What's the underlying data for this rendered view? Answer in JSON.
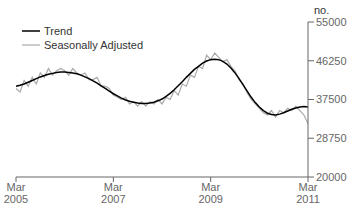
{
  "chart_data": {
    "type": "line",
    "title": "",
    "ylabel": "no.",
    "categories": [
      "Mar\n2005",
      null,
      null,
      null,
      null,
      null,
      null,
      null,
      null,
      null,
      null,
      null,
      null,
      null,
      null,
      null,
      null,
      null,
      null,
      null,
      null,
      null,
      null,
      null,
      "Mar\n2007",
      null,
      null,
      null,
      null,
      null,
      null,
      null,
      null,
      null,
      null,
      null,
      null,
      null,
      null,
      null,
      null,
      null,
      null,
      null,
      null,
      null,
      null,
      null,
      "Mar\n2009",
      null,
      null,
      null,
      null,
      null,
      null,
      null,
      null,
      null,
      null,
      null,
      null,
      null,
      null,
      null,
      null,
      null,
      null,
      null,
      null,
      null,
      null,
      null,
      "Mar\n2011"
    ],
    "series": [
      {
        "name": "Trend",
        "color": "#000000",
        "values": [
          40500,
          40700,
          41000,
          41400,
          41800,
          42200,
          42600,
          42900,
          43200,
          43400,
          43600,
          43700,
          43700,
          43600,
          43500,
          43300,
          43000,
          42600,
          42200,
          41700,
          41200,
          40600,
          40000,
          39400,
          38800,
          38300,
          37800,
          37400,
          37100,
          36900,
          36700,
          36600,
          36600,
          36700,
          36900,
          37200,
          37600,
          38200,
          38900,
          39700,
          40600,
          41500,
          42500,
          43400,
          44300,
          45000,
          45700,
          46200,
          46500,
          46600,
          46500,
          46100,
          45500,
          44600,
          43500,
          42200,
          40800,
          39400,
          38000,
          36800,
          35800,
          35000,
          34400,
          34100,
          34000,
          34200,
          34500,
          34900,
          35300,
          35600,
          35800,
          35900,
          35800
        ]
      },
      {
        "name": "Seasonally Adjusted",
        "color": "#aaaaaa",
        "values": [
          40000,
          39200,
          41800,
          40500,
          42500,
          41000,
          43500,
          42500,
          44500,
          43000,
          44000,
          44500,
          44000,
          43000,
          44500,
          43500,
          43000,
          43500,
          42000,
          42000,
          42500,
          40500,
          40500,
          40000,
          38500,
          38000,
          37500,
          38000,
          36500,
          37000,
          36000,
          37000,
          36000,
          37000,
          36500,
          37500,
          36500,
          38000,
          37500,
          39500,
          38500,
          41000,
          40500,
          43000,
          42500,
          45000,
          44500,
          47500,
          46500,
          48000,
          47000,
          46000,
          46500,
          45000,
          44000,
          42000,
          41000,
          39000,
          37500,
          36500,
          35500,
          34500,
          34000,
          35000,
          33500,
          35000,
          34500,
          35500,
          35000,
          36000,
          35000,
          34000,
          32000
        ]
      }
    ],
    "ylim": [
      20000,
      55000
    ],
    "yticks": [
      20000,
      28750,
      37500,
      46250,
      55000
    ],
    "grid": false,
    "legend": "upper left"
  }
}
